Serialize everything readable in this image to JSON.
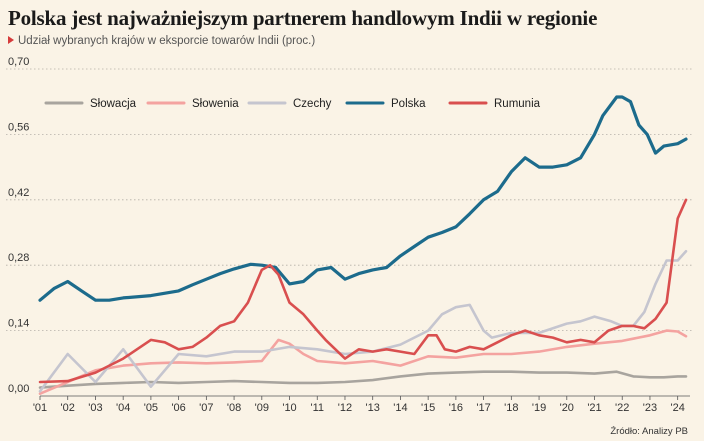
{
  "title": "Polska jest najważniejszym partnerem handlowym Indii w regionie",
  "subtitle": "Udział wybranych krajów w eksporcie towarów Indii (proc.)",
  "source": "Źródło: Analizy PB",
  "colors": {
    "background": "#faf3e6",
    "accent": "#d63b3b",
    "grid": "#b5b0a8"
  },
  "chart_data": {
    "type": "line",
    "ylim": [
      0,
      0.7
    ],
    "xlim": [
      2001,
      2024.3
    ],
    "yticks": [
      0,
      0.14,
      0.28,
      0.42,
      0.56,
      0.7
    ],
    "ytick_labels": [
      "0,00",
      "0,14",
      "0,28",
      "0,42",
      "0,56",
      "0,70"
    ],
    "xticks": [
      2001,
      2002,
      2003,
      2004,
      2005,
      2006,
      2007,
      2008,
      2009,
      2010,
      2011,
      2012,
      2013,
      2014,
      2015,
      2016,
      2017,
      2018,
      2019,
      2020,
      2021,
      2022,
      2023,
      2024
    ],
    "xtick_labels": [
      "'01",
      "'02",
      "'03",
      "'04",
      "'05",
      "'06",
      "'07",
      "'08",
      "'09",
      "'10",
      "'11",
      "'12",
      "'13",
      "'14",
      "'15",
      "'16",
      "'17",
      "'18",
      "'19",
      "'20",
      "'21",
      "'22",
      "'23",
      "'24"
    ],
    "grid": "horizontal dotted",
    "legend_position": "top-left",
    "series": [
      {
        "name": "Słowacja",
        "color": "#a8a49e",
        "x": [
          2001,
          2002,
          2003,
          2004,
          2005,
          2006,
          2007,
          2008,
          2009,
          2010,
          2011,
          2012,
          2013,
          2014,
          2015,
          2016,
          2017,
          2018,
          2019,
          2020,
          2021,
          2021.8,
          2022.4,
          2023,
          2023.5,
          2024,
          2024.3
        ],
        "y": [
          0.018,
          0.022,
          0.026,
          0.028,
          0.03,
          0.028,
          0.03,
          0.032,
          0.03,
          0.028,
          0.028,
          0.03,
          0.034,
          0.042,
          0.048,
          0.05,
          0.052,
          0.052,
          0.05,
          0.05,
          0.048,
          0.052,
          0.042,
          0.04,
          0.04,
          0.042,
          0.042
        ]
      },
      {
        "name": "Słowenia",
        "color": "#f4a3a0",
        "x": [
          2001,
          2002,
          2003,
          2004,
          2005,
          2006,
          2007,
          2008,
          2009,
          2009.6,
          2010,
          2010.5,
          2011,
          2012,
          2013,
          2014,
          2015,
          2016,
          2017,
          2018,
          2019,
          2020,
          2021,
          2022,
          2023,
          2023.6,
          2024,
          2024.3
        ],
        "y": [
          0.005,
          0.03,
          0.055,
          0.065,
          0.07,
          0.072,
          0.07,
          0.072,
          0.075,
          0.12,
          0.112,
          0.09,
          0.075,
          0.07,
          0.075,
          0.065,
          0.085,
          0.082,
          0.09,
          0.09,
          0.095,
          0.105,
          0.112,
          0.118,
          0.13,
          0.14,
          0.138,
          0.128
        ]
      },
      {
        "name": "Czechy",
        "color": "#c5c5cf",
        "x": [
          2001,
          2002,
          2003,
          2004,
          2005,
          2006,
          2007,
          2008,
          2009,
          2010,
          2011,
          2012,
          2013,
          2014,
          2015,
          2015.5,
          2016,
          2016.5,
          2017,
          2017.3,
          2018,
          2019,
          2020,
          2020.5,
          2021,
          2021.6,
          2022,
          2022.4,
          2022.8,
          2023.2,
          2023.6,
          2024,
          2024.3
        ],
        "y": [
          0.01,
          0.09,
          0.03,
          0.1,
          0.02,
          0.09,
          0.085,
          0.095,
          0.095,
          0.105,
          0.1,
          0.09,
          0.095,
          0.11,
          0.14,
          0.175,
          0.19,
          0.195,
          0.14,
          0.125,
          0.135,
          0.135,
          0.155,
          0.16,
          0.17,
          0.16,
          0.15,
          0.15,
          0.18,
          0.24,
          0.29,
          0.29,
          0.31
        ]
      },
      {
        "name": "Polska",
        "color": "#1c6b8c",
        "x": [
          2001,
          2001.5,
          2002,
          2002.5,
          2003,
          2003.5,
          2004,
          2005,
          2006,
          2006.5,
          2007,
          2007.5,
          2008,
          2008.6,
          2009,
          2009.5,
          2010,
          2010.5,
          2011,
          2011.5,
          2012,
          2012.5,
          2013,
          2013.5,
          2014,
          2014.5,
          2015,
          2015.5,
          2016,
          2016.5,
          2017,
          2017.5,
          2018,
          2018.5,
          2019,
          2019.5,
          2020,
          2020.5,
          2021,
          2021.3,
          2021.8,
          2022,
          2022.3,
          2022.6,
          2022.9,
          2023.2,
          2023.5,
          2024,
          2024.3
        ],
        "y": [
          0.205,
          0.23,
          0.245,
          0.225,
          0.205,
          0.205,
          0.21,
          0.215,
          0.225,
          0.238,
          0.25,
          0.262,
          0.272,
          0.282,
          0.28,
          0.275,
          0.24,
          0.245,
          0.27,
          0.275,
          0.25,
          0.262,
          0.27,
          0.275,
          0.3,
          0.32,
          0.34,
          0.35,
          0.362,
          0.39,
          0.42,
          0.438,
          0.48,
          0.51,
          0.49,
          0.49,
          0.495,
          0.51,
          0.56,
          0.6,
          0.64,
          0.64,
          0.63,
          0.58,
          0.56,
          0.52,
          0.535,
          0.54,
          0.55
        ]
      },
      {
        "name": "Rumunia",
        "color": "#d94f4f",
        "x": [
          2001,
          2002,
          2003,
          2004,
          2004.5,
          2005,
          2005.5,
          2006,
          2006.5,
          2007,
          2007.5,
          2008,
          2008.5,
          2009,
          2009.3,
          2009.6,
          2010,
          2010.5,
          2011,
          2011.3,
          2012,
          2012.5,
          2013,
          2013.5,
          2014,
          2014.5,
          2015,
          2015.3,
          2015.6,
          2016,
          2016.5,
          2017,
          2017.5,
          2018,
          2018.5,
          2019,
          2019.5,
          2020,
          2020.5,
          2021,
          2021.5,
          2022,
          2022.4,
          2022.8,
          2023.2,
          2023.6,
          2024,
          2024.3
        ],
        "y": [
          0.03,
          0.032,
          0.05,
          0.08,
          0.1,
          0.12,
          0.115,
          0.1,
          0.105,
          0.125,
          0.15,
          0.16,
          0.2,
          0.27,
          0.28,
          0.26,
          0.2,
          0.175,
          0.14,
          0.12,
          0.08,
          0.1,
          0.095,
          0.1,
          0.095,
          0.09,
          0.13,
          0.13,
          0.1,
          0.095,
          0.105,
          0.1,
          0.115,
          0.13,
          0.14,
          0.13,
          0.125,
          0.115,
          0.12,
          0.115,
          0.14,
          0.15,
          0.15,
          0.145,
          0.165,
          0.2,
          0.38,
          0.42
        ]
      }
    ]
  }
}
